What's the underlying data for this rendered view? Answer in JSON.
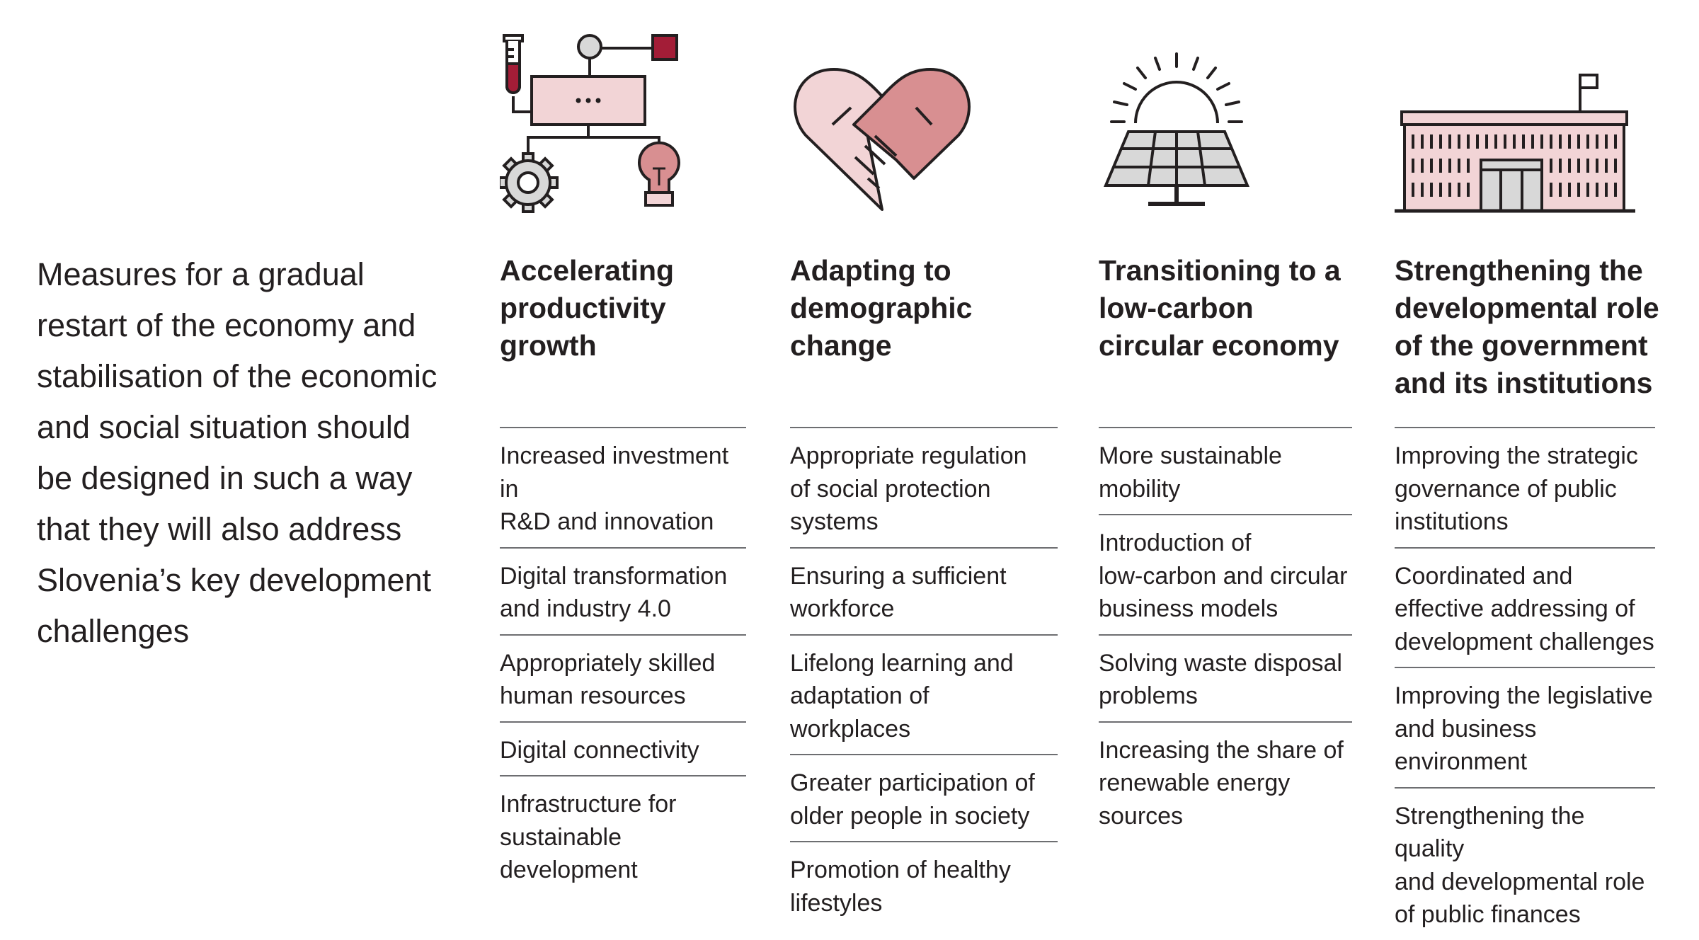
{
  "intro": {
    "text": "Measures for a gradual\nrestart of the economy and\nstabilisation of the economic\nand social situation should\nbe designed in such a way\nthat they will also address\nSlovenia’s key development\nchallenges"
  },
  "colors": {
    "outline": "#231f20",
    "pink_fill": "#f2d4d6",
    "rose_fill": "#d88f91",
    "crimson": "#a31d37",
    "grey_fill": "#d8d8d8",
    "rule": "#6d6e71"
  },
  "columns": [
    {
      "icon": "research-network-icon",
      "heading": "Accelerating\nproductivity\ngrowth",
      "items": [
        "Increased investment in\nR&D and innovation",
        "Digital transformation\nand industry 4.0",
        "Appropriately skilled\nhuman resources",
        "Digital connectivity",
        "Infrastructure for\nsustainable\ndevelopment"
      ]
    },
    {
      "icon": "handshake-heart-icon",
      "heading": "Adapting to\ndemographic\nchange",
      "items": [
        "Appropriate regulation\nof social protection\nsystems",
        "Ensuring a sufficient\nworkforce",
        "Lifelong learning and\nadaptation of\nworkplaces",
        "Greater participation of\nolder people in society",
        "Promotion of healthy\nlifestyles"
      ]
    },
    {
      "icon": "solar-panel-icon",
      "heading": "Transitioning to a\nlow-carbon\ncircular economy",
      "items": [
        "More sustainable\nmobility",
        "Introduction of\nlow-carbon and circular\nbusiness models",
        "Solving waste disposal\nproblems",
        "Increasing the share of\nrenewable energy\nsources"
      ]
    },
    {
      "icon": "government-building-icon",
      "heading": "Strengthening the\ndevelopmental role\nof the government\nand its institutions",
      "items": [
        "Improving the strategic\ngovernance of public\ninstitutions",
        "Coordinated and\neffective addressing of\ndevelopment challenges",
        "Improving the legislative\nand business\nenvironment",
        "Strengthening the quality\nand developmental role\nof public finances"
      ]
    }
  ]
}
